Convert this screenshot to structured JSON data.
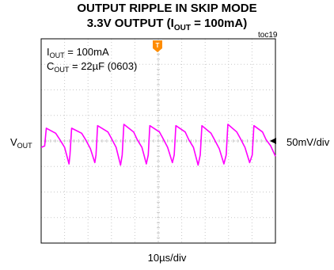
{
  "title": {
    "line1": "OUTPUT RIPPLE IN SKIP MODE",
    "line2_prefix": "3.3V OUTPUT (I",
    "line2_sub": "OUT",
    "line2_suffix": " = 100mA)"
  },
  "tag": "toc19",
  "annotations": {
    "iout_prefix": "I",
    "iout_sub": "OUT",
    "iout_value": " = 100mA",
    "cout_prefix": "C",
    "cout_sub": "OUT",
    "cout_value": " = 22µF (0603)"
  },
  "trigger_marker": "T",
  "colors": {
    "trace": "#ff00ff",
    "grid": "#c8c8c8",
    "frame": "#000000",
    "trigger": "#ff8c00"
  },
  "chart_data": {
    "type": "line",
    "channel": {
      "label_prefix": "V",
      "label_sub": "OUT",
      "scale": "50mV/div"
    },
    "timebase": "10µs/div",
    "divisions": {
      "x": 10,
      "y": 8
    },
    "x_unit": "div",
    "y_unit": "div",
    "xlim": [
      0,
      10
    ],
    "ylim": [
      -4,
      4
    ],
    "series": [
      {
        "x": [
          0.0,
          0.15,
          0.22,
          0.62,
          0.8,
          1.0,
          1.19,
          1.23,
          1.3,
          1.73,
          1.9,
          2.1,
          2.29,
          2.34,
          2.41,
          2.85,
          3.0,
          3.2,
          3.39,
          3.46,
          3.53,
          3.95,
          4.1,
          4.3,
          4.49,
          4.57,
          4.64,
          5.05,
          5.2,
          5.4,
          5.6,
          5.68,
          5.75,
          6.15,
          6.3,
          6.5,
          6.7,
          6.79,
          6.86,
          7.25,
          7.4,
          7.6,
          7.8,
          7.9,
          7.97,
          8.35,
          8.5,
          8.7,
          8.9,
          9.01,
          9.08,
          9.45,
          9.6,
          9.8,
          10.0
        ],
        "y": [
          -0.25,
          -0.2,
          0.5,
          0.3,
          0.05,
          -0.25,
          -0.9,
          -0.55,
          0.5,
          0.3,
          0.05,
          -0.3,
          -0.85,
          -0.55,
          0.6,
          0.35,
          0.1,
          -0.25,
          -0.95,
          -0.55,
          0.65,
          0.35,
          0.05,
          -0.25,
          -0.9,
          -0.55,
          0.6,
          0.35,
          0.1,
          -0.25,
          -0.85,
          -0.55,
          0.6,
          0.35,
          0.05,
          -0.25,
          -0.95,
          -0.55,
          0.6,
          0.3,
          0.05,
          -0.3,
          -0.9,
          -0.55,
          0.65,
          0.35,
          0.1,
          -0.25,
          -0.85,
          -0.55,
          0.6,
          0.35,
          0.05,
          -0.2,
          -0.6
        ]
      }
    ]
  }
}
